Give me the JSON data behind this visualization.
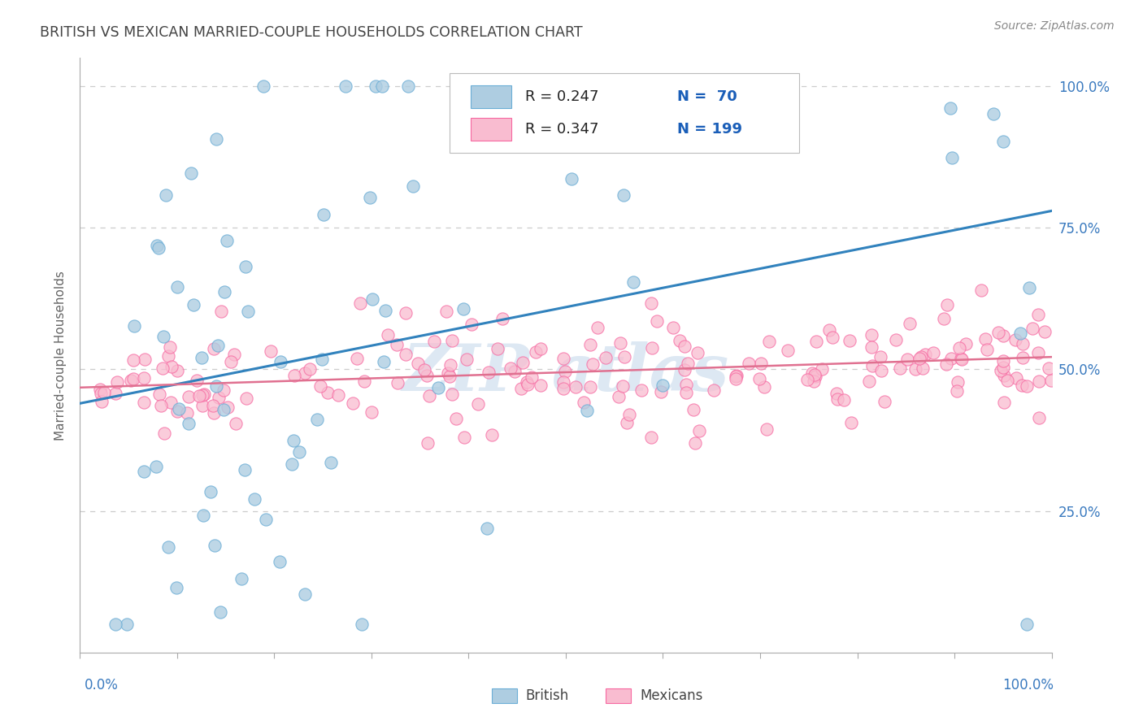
{
  "title": "BRITISH VS MEXICAN MARRIED-COUPLE HOUSEHOLDS CORRELATION CHART",
  "source": "Source: ZipAtlas.com",
  "ylabel": "Married-couple Households",
  "british_R": 0.247,
  "british_N": 70,
  "mexican_R": 0.347,
  "mexican_N": 199,
  "british_dot_fill": "#aecde1",
  "british_dot_edge": "#6baed6",
  "mexican_dot_fill": "#f9bcd0",
  "mexican_dot_edge": "#f768a1",
  "line_british_color": "#3182bd",
  "line_mexican_color": "#e07090",
  "legend_text_color": "#1a5eb8",
  "title_color": "#444444",
  "source_color": "#888888",
  "background_color": "#ffffff",
  "grid_color": "#cccccc",
  "watermark_color": "#dde8f3",
  "axis_color": "#aaaaaa",
  "right_label_color": "#3a7abf",
  "bottom_label_color": "#3a7abf",
  "br_trend_x0": 0.0,
  "br_trend_y0": 0.44,
  "br_trend_x1": 1.0,
  "br_trend_y1": 0.78,
  "mx_trend_x0": 0.0,
  "mx_trend_y0": 0.468,
  "mx_trend_x1": 1.0,
  "mx_trend_y1": 0.522,
  "ylim_min": 0.0,
  "ylim_max": 1.05,
  "xlim_min": 0.0,
  "xlim_max": 1.0
}
